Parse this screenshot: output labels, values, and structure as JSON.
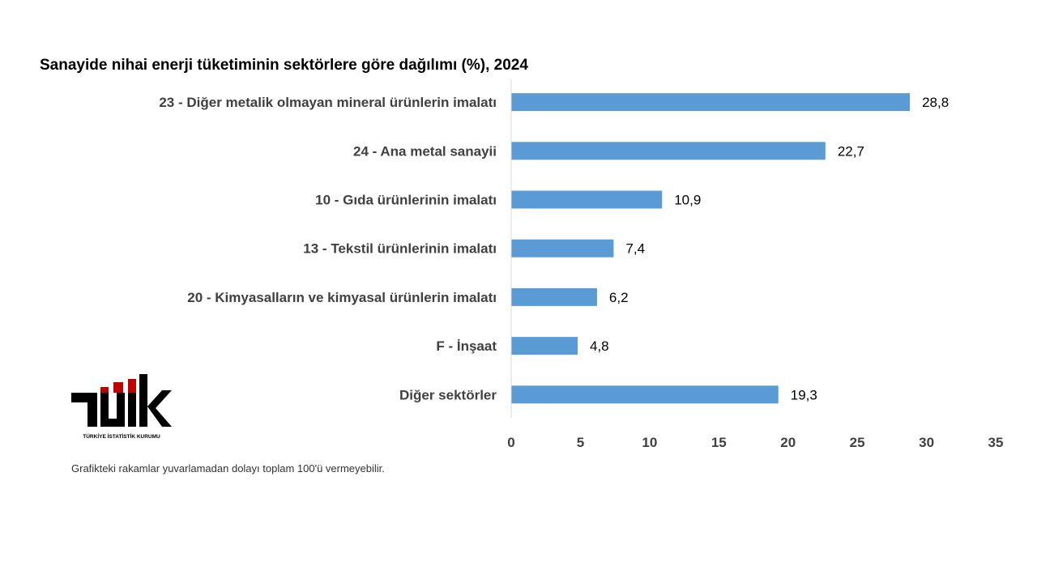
{
  "chart_data": {
    "type": "bar",
    "orientation": "horizontal",
    "title": "Sanayide nihai enerji tüketiminin sektörlere göre dağılımı (%), 2024",
    "categories": [
      "23 - Diğer metalik olmayan mineral ürünlerin imalatı",
      "24 - Ana metal sanayii",
      "10 - Gıda ürünlerinin imalatı",
      "13 - Tekstil ürünlerinin imalatı",
      "20 - Kimyasalların ve kimyasal ürünlerin imalatı",
      "F - İnşaat",
      "Diğer sektörler"
    ],
    "values": [
      28.8,
      22.7,
      10.9,
      7.4,
      6.2,
      4.8,
      19.3
    ],
    "value_labels": [
      "28,8",
      "22,7",
      "10,9",
      "7,4",
      "6,2",
      "4,8",
      "19,3"
    ],
    "xlim": [
      0,
      35
    ],
    "xticks": [
      "0",
      "5",
      "10",
      "15",
      "20",
      "25",
      "30",
      "35"
    ],
    "grid": false,
    "bar_color": "#5b9bd5"
  },
  "footnote": "Grafikteki rakamlar yuvarlamadan dolayı toplam 100'ü vermeyebilir.",
  "logo": {
    "text": "TÜİK",
    "subtitle": "TÜRKİYE İSTATİSTİK KURUMU",
    "colors": {
      "dark": "#000000",
      "red": "#c00000"
    }
  }
}
